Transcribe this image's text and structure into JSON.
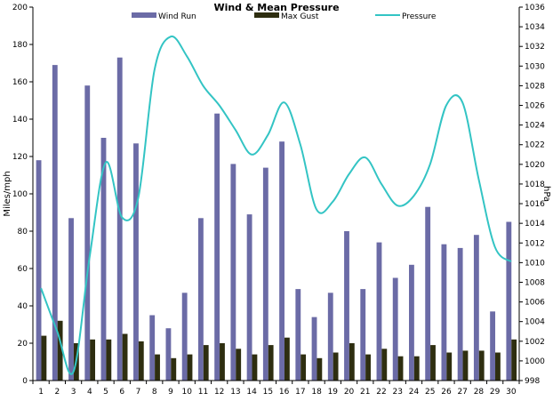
{
  "chart_data": {
    "type": "bar+line",
    "title": "Wind & Mean Pressure",
    "ylabel_left": "Miles/mph",
    "ylabel_right": "hPa",
    "ylim_left": [
      0,
      200
    ],
    "ylim_right": [
      998,
      1036
    ],
    "y_ticks_left": [
      "0",
      "20",
      "40",
      "60",
      "80",
      "100",
      "120",
      "140",
      "160",
      "180",
      "200"
    ],
    "y_ticks_right": [
      "998",
      "1000",
      "1002",
      "1004",
      "1006",
      "1008",
      "1010",
      "1012",
      "1014",
      "1016",
      "1018",
      "1020",
      "1022",
      "1024",
      "1026",
      "1028",
      "1030",
      "1032",
      "1034",
      "1036"
    ],
    "categories": [
      "1",
      "2",
      "3",
      "4",
      "5",
      "6",
      "7",
      "8",
      "9",
      "10",
      "11",
      "12",
      "13",
      "14",
      "15",
      "16",
      "17",
      "18",
      "19",
      "20",
      "21",
      "22",
      "23",
      "24",
      "25",
      "26",
      "27",
      "28",
      "29",
      "30"
    ],
    "grid": false,
    "legend_placement": "top",
    "series": [
      {
        "name": "Wind Run",
        "type": "bar",
        "axis": "left",
        "color": "#6b6ba6",
        "values": [
          118,
          169,
          87,
          158,
          130,
          173,
          127,
          35,
          28,
          47,
          87,
          143,
          116,
          89,
          114,
          128,
          49,
          34,
          47,
          80,
          49,
          74,
          55,
          62,
          93,
          73,
          71,
          78,
          37,
          85
        ]
      },
      {
        "name": "Max Gust",
        "type": "bar",
        "axis": "left",
        "color": "#2e2e10",
        "values": [
          24,
          32,
          20,
          22,
          22,
          25,
          21,
          14,
          12,
          14,
          19,
          20,
          17,
          14,
          19,
          23,
          14,
          12,
          15,
          20,
          14,
          17,
          13,
          13,
          19,
          15,
          16,
          16,
          15,
          22
        ]
      },
      {
        "name": "Pressure",
        "type": "line",
        "axis": "right",
        "color": "#33c4c4",
        "values": [
          1007.4,
          1003.0,
          998.9,
          1010.6,
          1020.2,
          1014.6,
          1016.6,
          1029.6,
          1033.0,
          1031.0,
          1028.0,
          1026.0,
          1023.5,
          1021.0,
          1023.0,
          1026.3,
          1022.0,
          1015.4,
          1016.2,
          1019.0,
          1020.7,
          1018.0,
          1015.8,
          1016.8,
          1020.0,
          1026.0,
          1026.3,
          1018.5,
          1011.6,
          1010.1
        ]
      }
    ]
  }
}
